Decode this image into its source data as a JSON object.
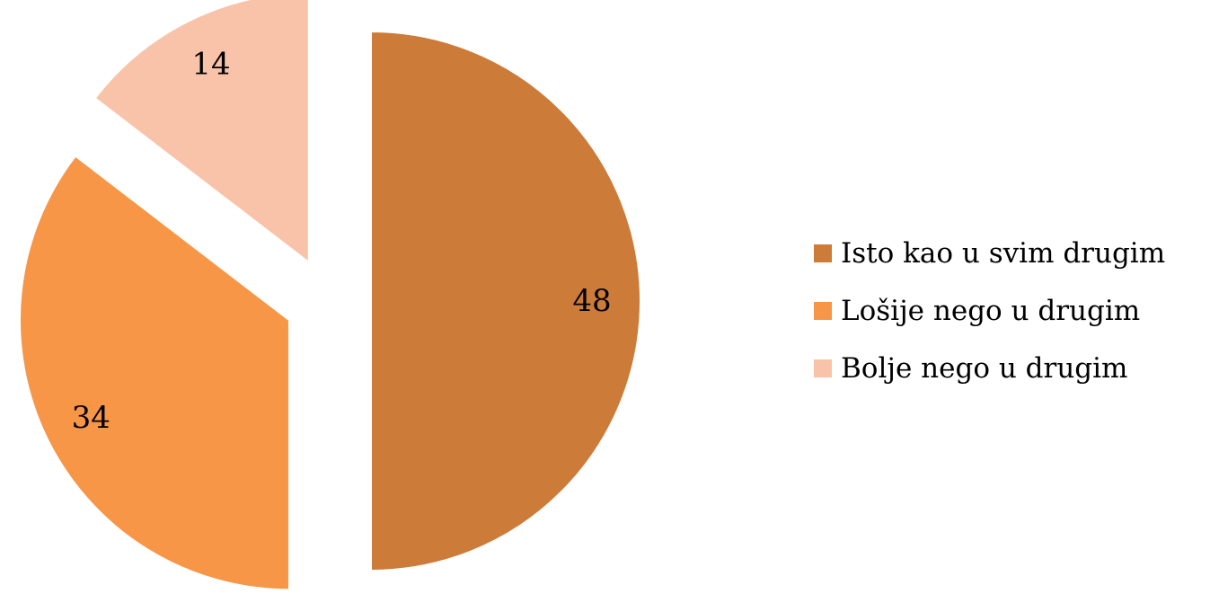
{
  "chart_data": {
    "type": "pie",
    "title": "",
    "start_angle_deg": 0,
    "direction": "clockwise",
    "exploded": true,
    "data_labels": true,
    "legend_position": "right",
    "slices": [
      {
        "label": "Isto kao u svim drugim",
        "value": 48,
        "color": "#CC7B39"
      },
      {
        "label": "Lošije nego u drugim",
        "value": 34,
        "color": "#F79646"
      },
      {
        "label": "Bolje nego u drugim",
        "value": 14,
        "color": "#F9C3A9"
      }
    ]
  }
}
